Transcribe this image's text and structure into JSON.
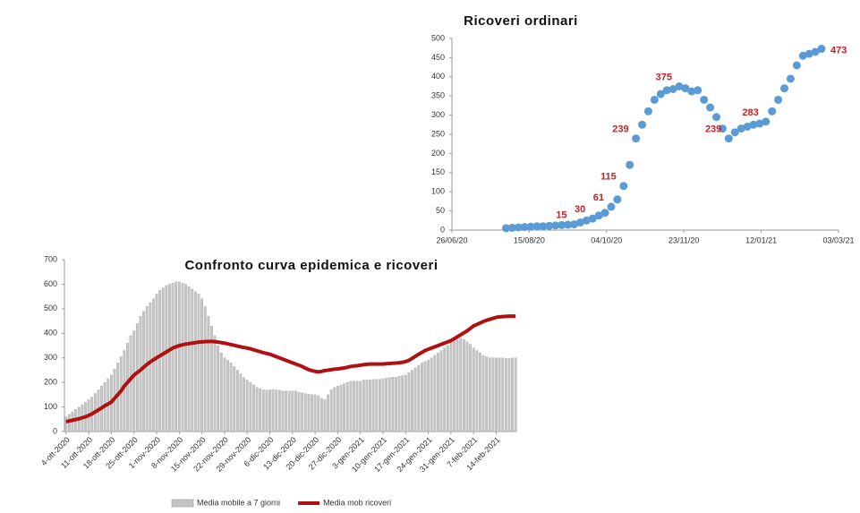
{
  "chart_data": [
    {
      "type": "scatter",
      "title": "Ricoveri ordinari",
      "color": "#5b9bd5",
      "label_color": "#c0242b",
      "x": [
        "2020-07-31",
        "2020-08-04",
        "2020-08-08",
        "2020-08-12",
        "2020-08-16",
        "2020-08-20",
        "2020-08-24",
        "2020-08-28",
        "2020-09-01",
        "2020-09-05",
        "2020-09-09",
        "2020-09-13",
        "2020-09-17",
        "2020-09-21",
        "2020-09-25",
        "2020-09-29",
        "2020-10-03",
        "2020-10-07",
        "2020-10-11",
        "2020-10-15",
        "2020-10-19",
        "2020-10-23",
        "2020-10-27",
        "2020-10-31",
        "2020-11-04",
        "2020-11-08",
        "2020-11-12",
        "2020-11-16",
        "2020-11-20",
        "2020-11-24",
        "2020-11-28",
        "2020-12-02",
        "2020-12-06",
        "2020-12-10",
        "2020-12-14",
        "2020-12-18",
        "2020-12-22",
        "2020-12-26",
        "2020-12-30",
        "2021-01-03",
        "2021-01-07",
        "2021-01-11",
        "2021-01-15",
        "2021-01-19",
        "2021-01-23",
        "2021-01-27",
        "2021-01-31",
        "2021-02-04",
        "2021-02-08",
        "2021-02-12",
        "2021-02-16",
        "2021-02-20"
      ],
      "values": [
        5,
        6,
        7,
        8,
        9,
        10,
        10,
        11,
        12,
        13,
        14,
        15,
        20,
        25,
        30,
        38,
        45,
        61,
        80,
        115,
        170,
        239,
        275,
        310,
        340,
        355,
        365,
        368,
        375,
        370,
        362,
        365,
        340,
        320,
        295,
        265,
        239,
        255,
        265,
        270,
        275,
        278,
        283,
        310,
        340,
        370,
        395,
        430,
        455,
        460,
        465,
        473
      ],
      "labeled": [
        false,
        false,
        false,
        false,
        false,
        false,
        false,
        false,
        false,
        false,
        false,
        true,
        false,
        false,
        true,
        false,
        false,
        true,
        false,
        true,
        false,
        true,
        false,
        false,
        false,
        false,
        false,
        false,
        true,
        false,
        false,
        false,
        false,
        false,
        false,
        false,
        true,
        false,
        false,
        false,
        false,
        false,
        true,
        false,
        false,
        false,
        false,
        false,
        false,
        false,
        false,
        true
      ],
      "xlim": [
        "2020-06-26",
        "2021-03-03"
      ],
      "xticks": [
        {
          "value": "2020-06-26",
          "label": "26/06/20"
        },
        {
          "value": "2020-08-15",
          "label": "15/08/20"
        },
        {
          "value": "2020-10-04",
          "label": "04/10/20"
        },
        {
          "value": "2020-11-23",
          "label": "23/11/20"
        },
        {
          "value": "2021-01-12",
          "label": "12/01/21"
        },
        {
          "value": "2021-03-03",
          "label": "03/03/21"
        }
      ],
      "ylim": [
        0,
        500
      ],
      "yticks": [
        0,
        50,
        100,
        150,
        200,
        250,
        300,
        350,
        400,
        450,
        500
      ],
      "grid": false
    },
    {
      "type": "bar",
      "title": "Confronto curva epidemica e ricoveri",
      "legend": "bottom",
      "categories": [
        "4-ott-2020",
        null,
        null,
        null,
        null,
        null,
        null,
        "11-ott-2020",
        null,
        null,
        null,
        null,
        null,
        null,
        "18-ott-2020",
        null,
        null,
        null,
        null,
        null,
        null,
        "25-ott-2020",
        null,
        null,
        null,
        null,
        null,
        null,
        "1-nov-2020",
        null,
        null,
        null,
        null,
        null,
        null,
        "8-nov-2020",
        null,
        null,
        null,
        null,
        null,
        null,
        "15-nov-2020",
        null,
        null,
        null,
        null,
        null,
        null,
        "22-nov-2020",
        null,
        null,
        null,
        null,
        null,
        null,
        "29-nov-2020",
        null,
        null,
        null,
        null,
        null,
        null,
        "6-dic-2020",
        null,
        null,
        null,
        null,
        null,
        null,
        "13-dic-2020",
        null,
        null,
        null,
        null,
        null,
        null,
        "20-dic-2020",
        null,
        null,
        null,
        null,
        null,
        null,
        "27-dic-2020",
        null,
        null,
        null,
        null,
        null,
        null,
        "3-gen-2021",
        null,
        null,
        null,
        null,
        null,
        null,
        "10-gen-2021",
        null,
        null,
        null,
        null,
        null,
        null,
        "17-gen-2021",
        null,
        null,
        null,
        null,
        null,
        null,
        "24-gen-2021",
        null,
        null,
        null,
        null,
        null,
        null,
        "31-gen-2021",
        null,
        null,
        null,
        null,
        null,
        null,
        "7-feb-2021",
        null,
        null,
        null,
        null,
        null,
        null,
        "14-feb-2021",
        null,
        null,
        null,
        null,
        null,
        null
      ],
      "series": [
        {
          "name": "Media mobile a 7 giorni",
          "type": "bar",
          "color": "#c4c4c4",
          "values": [
            60,
            70,
            80,
            90,
            100,
            110,
            120,
            130,
            140,
            155,
            170,
            185,
            200,
            215,
            230,
            255,
            280,
            305,
            330,
            360,
            390,
            410,
            440,
            470,
            490,
            510,
            525,
            540,
            560,
            575,
            585,
            595,
            600,
            605,
            610,
            610,
            605,
            600,
            590,
            580,
            570,
            560,
            540,
            510,
            470,
            430,
            390,
            350,
            320,
            300,
            290,
            280,
            265,
            250,
            235,
            220,
            210,
            200,
            190,
            180,
            175,
            170,
            168,
            170,
            172,
            170,
            168,
            165,
            165,
            165,
            165,
            165,
            160,
            158,
            155,
            152,
            150,
            150,
            145,
            135,
            130,
            150,
            170,
            180,
            185,
            190,
            195,
            200,
            205,
            205,
            205,
            205,
            210,
            210,
            210,
            212,
            212,
            213,
            215,
            218,
            220,
            222,
            222,
            225,
            228,
            230,
            240,
            250,
            260,
            270,
            280,
            285,
            290,
            300,
            310,
            320,
            330,
            340,
            350,
            360,
            370,
            375,
            380,
            375,
            365,
            355,
            340,
            330,
            320,
            310,
            305,
            300,
            300,
            300,
            300,
            300,
            298,
            298,
            300,
            300
          ]
        },
        {
          "name": "Media mob ricoveri",
          "type": "line",
          "color": "#b01010",
          "values": [
            40,
            43,
            46,
            49,
            52,
            56,
            60,
            65,
            72,
            80,
            88,
            96,
            105,
            112,
            120,
            135,
            150,
            165,
            185,
            200,
            215,
            230,
            240,
            250,
            262,
            273,
            283,
            292,
            300,
            308,
            316,
            324,
            332,
            340,
            345,
            350,
            353,
            356,
            358,
            360,
            362,
            364,
            365,
            366,
            367,
            367,
            366,
            364,
            362,
            360,
            357,
            354,
            351,
            348,
            345,
            342,
            340,
            337,
            333,
            329,
            325,
            321,
            318,
            315,
            310,
            305,
            300,
            295,
            290,
            285,
            280,
            275,
            270,
            265,
            258,
            252,
            248,
            245,
            243,
            245,
            248,
            250,
            252,
            254,
            255,
            257,
            259,
            262,
            265,
            267,
            268,
            270,
            272,
            274,
            275,
            275,
            275,
            275,
            275,
            276,
            277,
            278,
            279,
            280,
            282,
            285,
            290,
            298,
            306,
            315,
            322,
            330,
            335,
            340,
            345,
            350,
            355,
            360,
            365,
            370,
            378,
            386,
            394,
            402,
            410,
            420,
            430,
            436,
            442,
            448,
            453,
            457,
            461,
            465,
            467,
            468,
            469,
            470,
            470,
            470
          ]
        }
      ],
      "ylim": [
        0,
        700
      ],
      "yticks": [
        0,
        100,
        200,
        300,
        400,
        500,
        600,
        700
      ],
      "grid": false
    }
  ]
}
